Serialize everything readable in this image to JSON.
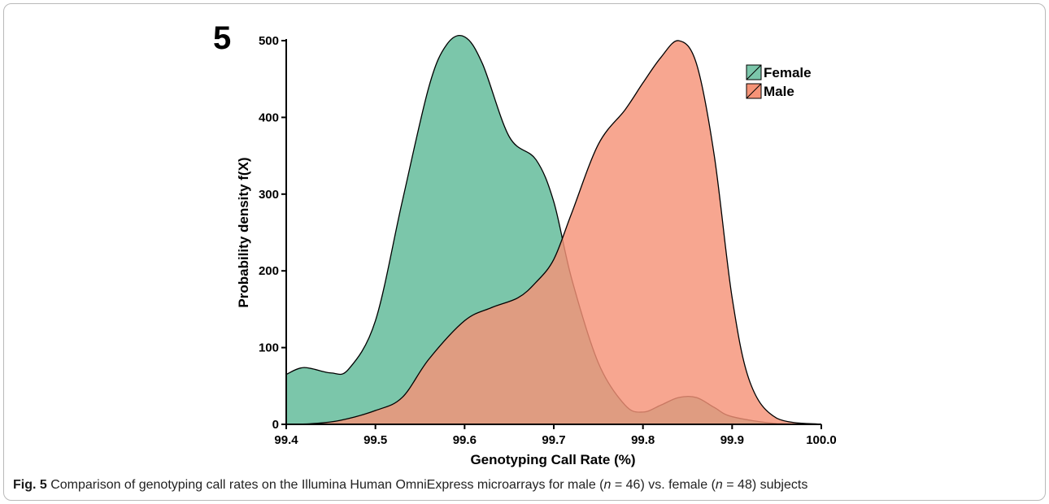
{
  "panel_label": "5",
  "caption": {
    "label": "Fig. 5",
    "part1": " Comparison of genotyping call rates on the Illumina Human OmniExpress microarrays for male (",
    "n_var_1": "n",
    "part2": " = 46) vs. female (",
    "n_var_2": "n",
    "part3": " = 48) subjects"
  },
  "colors": {
    "female": "#7bc6aa",
    "male": "#f59377",
    "overlap": "#dc8767",
    "axis": "#000000"
  },
  "chart_data": {
    "type": "area",
    "xlabel": "Genotyping Call Rate (%)",
    "ylabel": "Probability density f(X)",
    "xlim": [
      99.4,
      100.0
    ],
    "ylim": [
      0,
      500
    ],
    "x_ticks": [
      "99.4",
      "99.5",
      "99.6",
      "99.7",
      "99.8",
      "99.9",
      "100.0"
    ],
    "y_ticks": [
      "0",
      "100",
      "200",
      "300",
      "400",
      "500"
    ],
    "legend_position": "top-right",
    "series": [
      {
        "name": "Female",
        "x": [
          99.4,
          99.42,
          99.45,
          99.47,
          99.5,
          99.53,
          99.56,
          99.58,
          99.6,
          99.62,
          99.65,
          99.68,
          99.7,
          99.72,
          99.75,
          99.78,
          99.8,
          99.82,
          99.84,
          99.86,
          99.88,
          99.9,
          99.95,
          100.0
        ],
        "y": [
          65,
          74,
          67,
          72,
          135,
          290,
          440,
          495,
          505,
          470,
          375,
          345,
          290,
          190,
          80,
          25,
          16,
          25,
          35,
          35,
          22,
          10,
          1,
          0
        ]
      },
      {
        "name": "Male",
        "x": [
          99.4,
          99.43,
          99.46,
          99.5,
          99.53,
          99.56,
          99.6,
          99.63,
          99.66,
          99.68,
          99.7,
          99.72,
          99.75,
          99.78,
          99.8,
          99.82,
          99.84,
          99.86,
          99.88,
          99.9,
          99.92,
          99.95,
          100.0
        ],
        "y": [
          0,
          1,
          5,
          18,
          35,
          85,
          135,
          152,
          165,
          185,
          215,
          275,
          365,
          410,
          445,
          478,
          500,
          470,
          350,
          165,
          55,
          8,
          0
        ]
      }
    ]
  }
}
